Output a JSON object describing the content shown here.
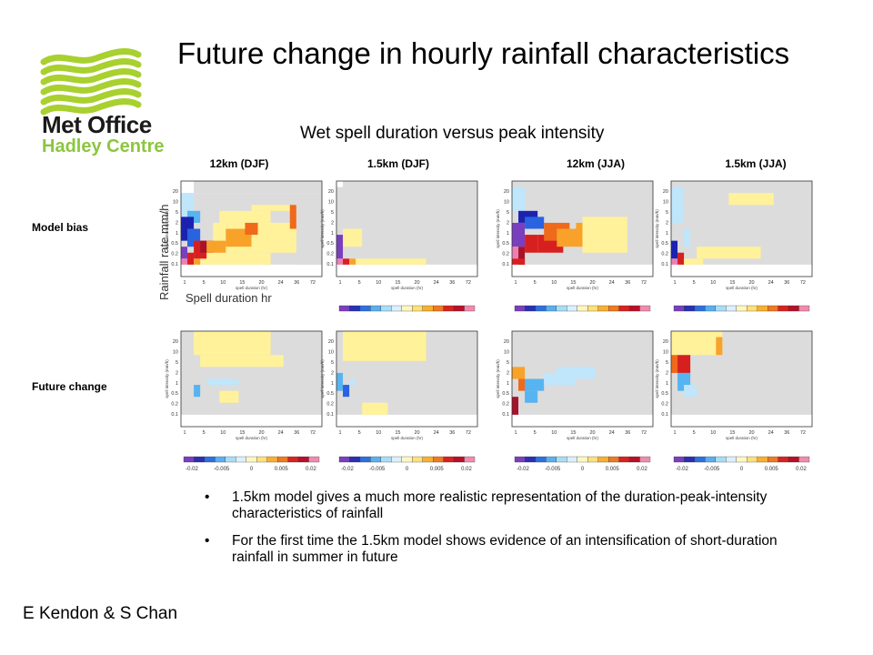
{
  "logo": {
    "name": "Met Office",
    "sub": "Hadley Centre",
    "stripe_color": "#a8d02f"
  },
  "title": "Future change in hourly rainfall characteristics",
  "subtitle": "Wet spell duration versus peak intensity",
  "column_headers": [
    "12km (DJF)",
    "1.5km (DJF)",
    "12km (JJA)",
    "1.5km (JJA)"
  ],
  "row_headers": [
    "Model bias",
    "Future change"
  ],
  "overlay_labels": {
    "y": "Rainfall rate mm/h",
    "x": "Spell duration hr"
  },
  "bullets": [
    "1.5km model gives a much more realistic representation of the duration-peak-intensity characteristics of rainfall",
    "For the first time the 1.5km model shows evidence of an intensification of short-duration rainfall in summer in future"
  ],
  "author": "E Kendon & S Chan",
  "chart_data": {
    "type": "heatmap",
    "panel_axis_labels": {
      "x": "spell duration (hr)",
      "y": "spell intensity (mm/h)"
    },
    "x_ticks": [
      "1",
      "5",
      "10",
      "15",
      "20",
      "24",
      "36",
      "72"
    ],
    "y_ticks": [
      "0.1",
      "0.2",
      "0.5",
      "1",
      "2",
      "5",
      "10",
      "20"
    ],
    "colorbar_ticks": [
      "-0.02",
      "-0.005",
      "0",
      "0.005",
      "0.02"
    ],
    "colorbar_colors": [
      "#7a3fbf",
      "#2b2fb5",
      "#2f6fe0",
      "#59b0f0",
      "#a9dcf7",
      "#dcefff",
      "#fff6c0",
      "#ffe07a",
      "#f8b030",
      "#ef7a20",
      "#d8231f",
      "#b8102a",
      "#f08ab0"
    ],
    "bias_colorbar_ticks": [],
    "colors": {
      "neutral": "#dcdcdc",
      "light_yellow": "#fff29a",
      "yellow": "#ffdf5e",
      "orange": "#f8a22a",
      "dark_orange": "#ef6a1a",
      "red": "#d81f1f",
      "dark_red": "#a7122a",
      "pink": "#ef7fb2",
      "light_blue": "#bfe6fb",
      "mid_blue": "#56b4f0",
      "blue": "#2a63e0",
      "dark_blue": "#1c22b0",
      "purple": "#7a3fbf"
    }
  }
}
